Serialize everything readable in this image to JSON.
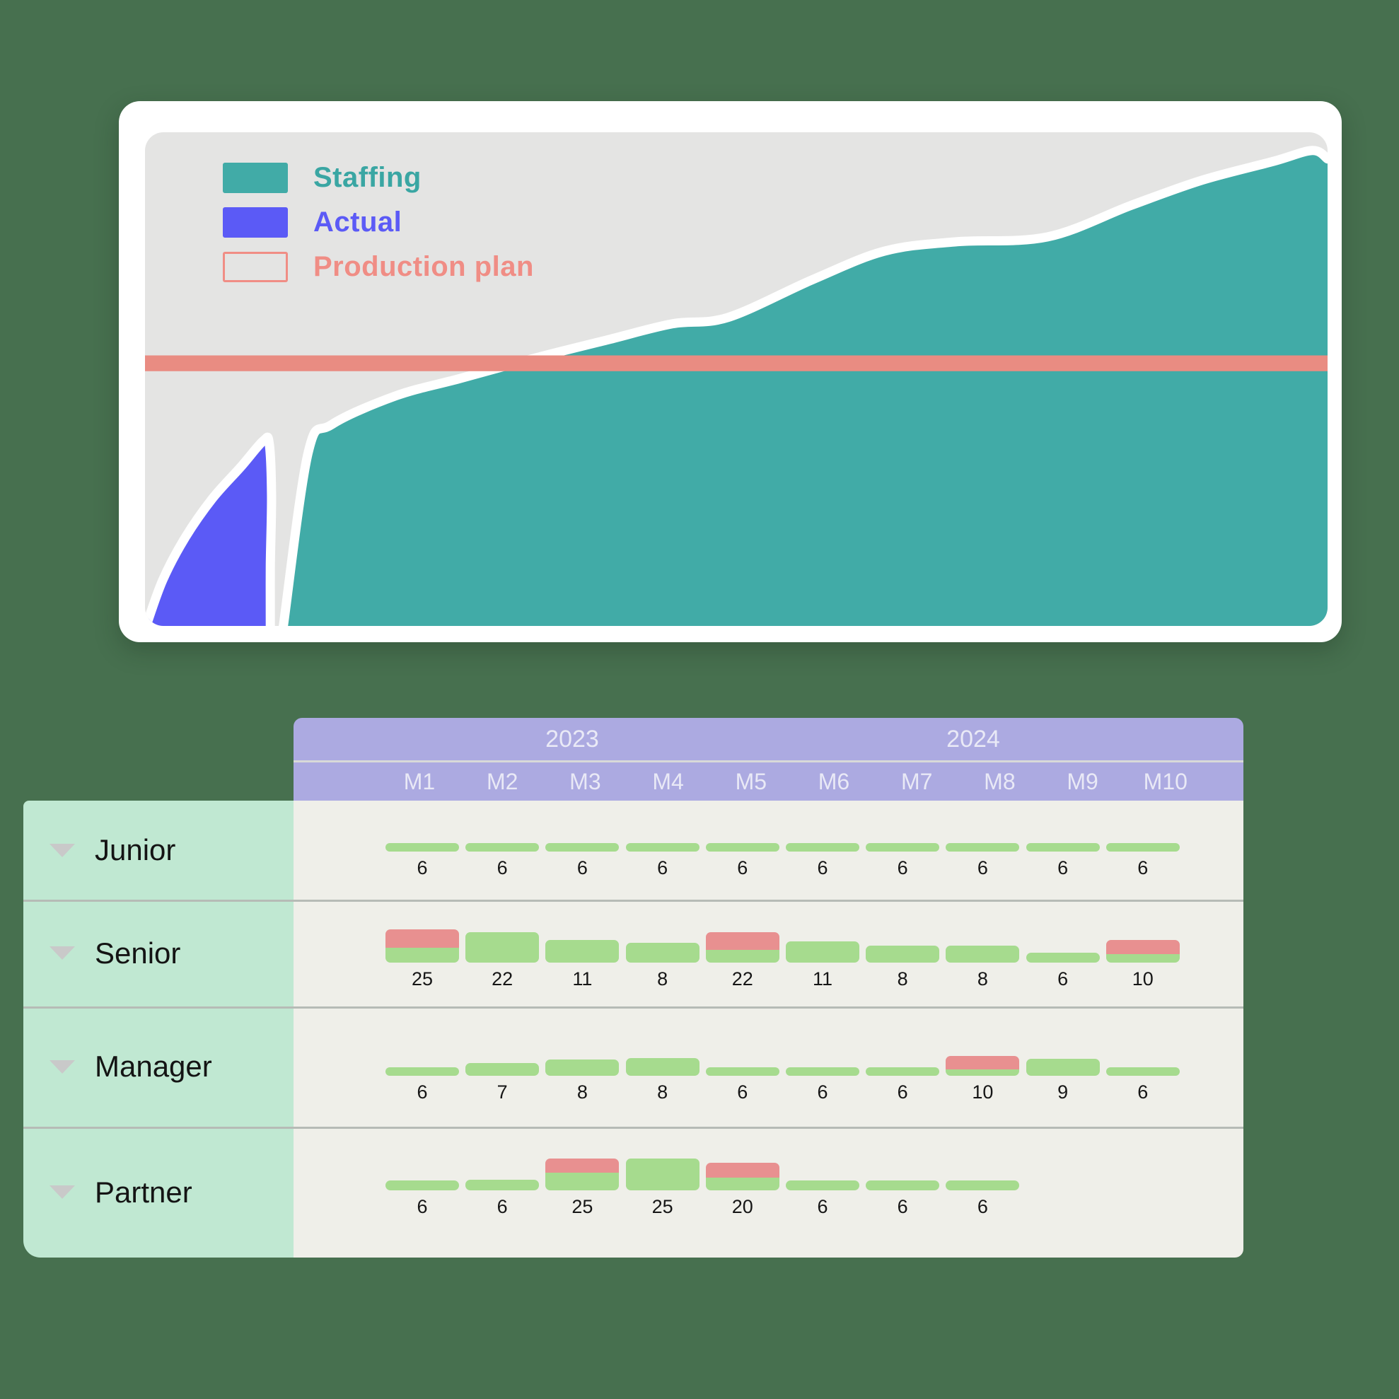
{
  "colors": {
    "background": "#47704F",
    "staffing_teal": "#41ABA7",
    "actual_blue": "#5B5AF6",
    "production_plan_salmon": "#E98C82",
    "bar_green": "#A6DB8E",
    "bar_red": "#E89090",
    "header_purple": "#ACAAE1",
    "label_column_mint": "#C0E8D2",
    "chart_background_gray": "#E4E4E3"
  },
  "legend": {
    "items": [
      {
        "label": "Staffing",
        "swatch": "fill",
        "color": "#41ABA7",
        "text_color": "#3AA6A3"
      },
      {
        "label": "Actual",
        "swatch": "fill",
        "color": "#5B5AF6",
        "text_color": "#5B5AF6"
      },
      {
        "label": "Production plan",
        "swatch": "outline",
        "color": "#F08D85",
        "text_color": "#F08D85"
      }
    ]
  },
  "table": {
    "year_groups": [
      {
        "label": "2023"
      },
      {
        "label": "2024"
      }
    ],
    "months": [
      "M1",
      "M2",
      "M3",
      "M4",
      "M5",
      "M6",
      "M7",
      "M8",
      "M9",
      "M10"
    ],
    "rows": [
      {
        "label": "Junior",
        "cells": [
          {
            "value": 6,
            "green_h": 12,
            "red_h": 0
          },
          {
            "value": 6,
            "green_h": 12,
            "red_h": 0
          },
          {
            "value": 6,
            "green_h": 12,
            "red_h": 0
          },
          {
            "value": 6,
            "green_h": 12,
            "red_h": 0
          },
          {
            "value": 6,
            "green_h": 12,
            "red_h": 0
          },
          {
            "value": 6,
            "green_h": 12,
            "red_h": 0
          },
          {
            "value": 6,
            "green_h": 12,
            "red_h": 0
          },
          {
            "value": 6,
            "green_h": 12,
            "red_h": 0
          },
          {
            "value": 6,
            "green_h": 12,
            "red_h": 0
          },
          {
            "value": 6,
            "green_h": 12,
            "red_h": 0
          }
        ]
      },
      {
        "label": "Senior",
        "cells": [
          {
            "value": 25,
            "green_h": 21,
            "red_h": 26
          },
          {
            "value": 22,
            "green_h": 43,
            "red_h": 0
          },
          {
            "value": 11,
            "green_h": 32,
            "red_h": 0
          },
          {
            "value": 8,
            "green_h": 28,
            "red_h": 0
          },
          {
            "value": 22,
            "green_h": 18,
            "red_h": 25
          },
          {
            "value": 11,
            "green_h": 30,
            "red_h": 0
          },
          {
            "value": 8,
            "green_h": 24,
            "red_h": 0
          },
          {
            "value": 8,
            "green_h": 24,
            "red_h": 0
          },
          {
            "value": 6,
            "green_h": 14,
            "red_h": 0
          },
          {
            "value": 10,
            "green_h": 12,
            "red_h": 20
          }
        ]
      },
      {
        "label": "Manager",
        "cells": [
          {
            "value": 6,
            "green_h": 12,
            "red_h": 0
          },
          {
            "value": 7,
            "green_h": 18,
            "red_h": 0
          },
          {
            "value": 8,
            "green_h": 23,
            "red_h": 0
          },
          {
            "value": 8,
            "green_h": 25,
            "red_h": 0
          },
          {
            "value": 6,
            "green_h": 12,
            "red_h": 0
          },
          {
            "value": 6,
            "green_h": 12,
            "red_h": 0
          },
          {
            "value": 6,
            "green_h": 12,
            "red_h": 0
          },
          {
            "value": 10,
            "green_h": 9,
            "red_h": 19
          },
          {
            "value": 9,
            "green_h": 24,
            "red_h": 0
          },
          {
            "value": 6,
            "green_h": 12,
            "red_h": 0
          }
        ]
      },
      {
        "label": "Partner",
        "cells": [
          {
            "value": 6,
            "green_h": 14,
            "red_h": 0
          },
          {
            "value": 6,
            "green_h": 15,
            "red_h": 0
          },
          {
            "value": 25,
            "green_h": 25,
            "red_h": 20
          },
          {
            "value": 25,
            "green_h": 45,
            "red_h": 0
          },
          {
            "value": 20,
            "green_h": 18,
            "red_h": 21
          },
          {
            "value": 6,
            "green_h": 14,
            "red_h": 0
          },
          {
            "value": 6,
            "green_h": 14,
            "red_h": 0
          },
          {
            "value": 6,
            "green_h": 14,
            "red_h": 0
          },
          null,
          null
        ]
      }
    ]
  },
  "chart_data": [
    {
      "type": "area",
      "title": "Staffing vs Actual vs Production plan",
      "axes_visible": false,
      "legend_position": "top-left",
      "xlim": [
        0,
        100
      ],
      "ylim": [
        0,
        100
      ],
      "series": [
        {
          "name": "Staffing",
          "color": "#41ABA7",
          "x_pct": [
            11.7,
            13.8,
            15.8,
            21.2,
            26.6,
            33.2,
            39.2,
            44.6,
            49.3,
            56.5,
            62.5,
            68.5,
            76.3,
            83.4,
            89.4,
            95.4,
            98.7,
            100
          ],
          "y_pct": [
            0,
            35.1,
            40.8,
            46.6,
            50.1,
            54.4,
            58.0,
            61.2,
            62.5,
            70.2,
            75.9,
            77.8,
            78.8,
            85.2,
            90.3,
            94.1,
            96.3,
            94.6
          ]
        },
        {
          "name": "Actual",
          "color": "#5B5AF6",
          "x_pct": [
            0.1,
            1.5,
            3.4,
            5.7,
            8.1,
            10.0,
            10.5,
            10.7,
            10.6,
            10.6
          ],
          "y_pct": [
            0,
            9.3,
            17.9,
            25.8,
            32.2,
            37.5,
            37.0,
            26.5,
            12.2,
            0
          ]
        },
        {
          "name": "Production plan",
          "color": "#E98C82",
          "constant_y_pct": 53.2,
          "band_thickness_pct": 3.2
        }
      ]
    },
    {
      "type": "bar",
      "title": "Staffing by level and month",
      "categories": [
        "M1",
        "M2",
        "M3",
        "M4",
        "M5",
        "M6",
        "M7",
        "M8",
        "M9",
        "M10"
      ],
      "year_groups": {
        "2023": [
          "M1",
          "M2",
          "M3",
          "M4",
          "M5"
        ],
        "2024": [
          "M6",
          "M7",
          "M8",
          "M9",
          "M10"
        ]
      },
      "series": [
        {
          "name": "Junior",
          "values": [
            6,
            6,
            6,
            6,
            6,
            6,
            6,
            6,
            6,
            6
          ],
          "over_plan": [
            0,
            0,
            0,
            0,
            0,
            0,
            0,
            0,
            0,
            0
          ]
        },
        {
          "name": "Senior",
          "values": [
            25,
            22,
            11,
            8,
            22,
            11,
            8,
            8,
            6,
            10
          ],
          "over_plan": [
            1,
            0,
            0,
            0,
            1,
            0,
            0,
            0,
            0,
            1
          ]
        },
        {
          "name": "Manager",
          "values": [
            6,
            7,
            8,
            8,
            6,
            6,
            6,
            10,
            9,
            6
          ],
          "over_plan": [
            0,
            0,
            0,
            0,
            0,
            0,
            0,
            1,
            0,
            0
          ]
        },
        {
          "name": "Partner",
          "values": [
            6,
            6,
            25,
            25,
            20,
            6,
            6,
            6,
            null,
            null
          ],
          "over_plan": [
            0,
            0,
            1,
            0,
            1,
            0,
            0,
            0,
            null,
            null
          ]
        }
      ]
    }
  ]
}
